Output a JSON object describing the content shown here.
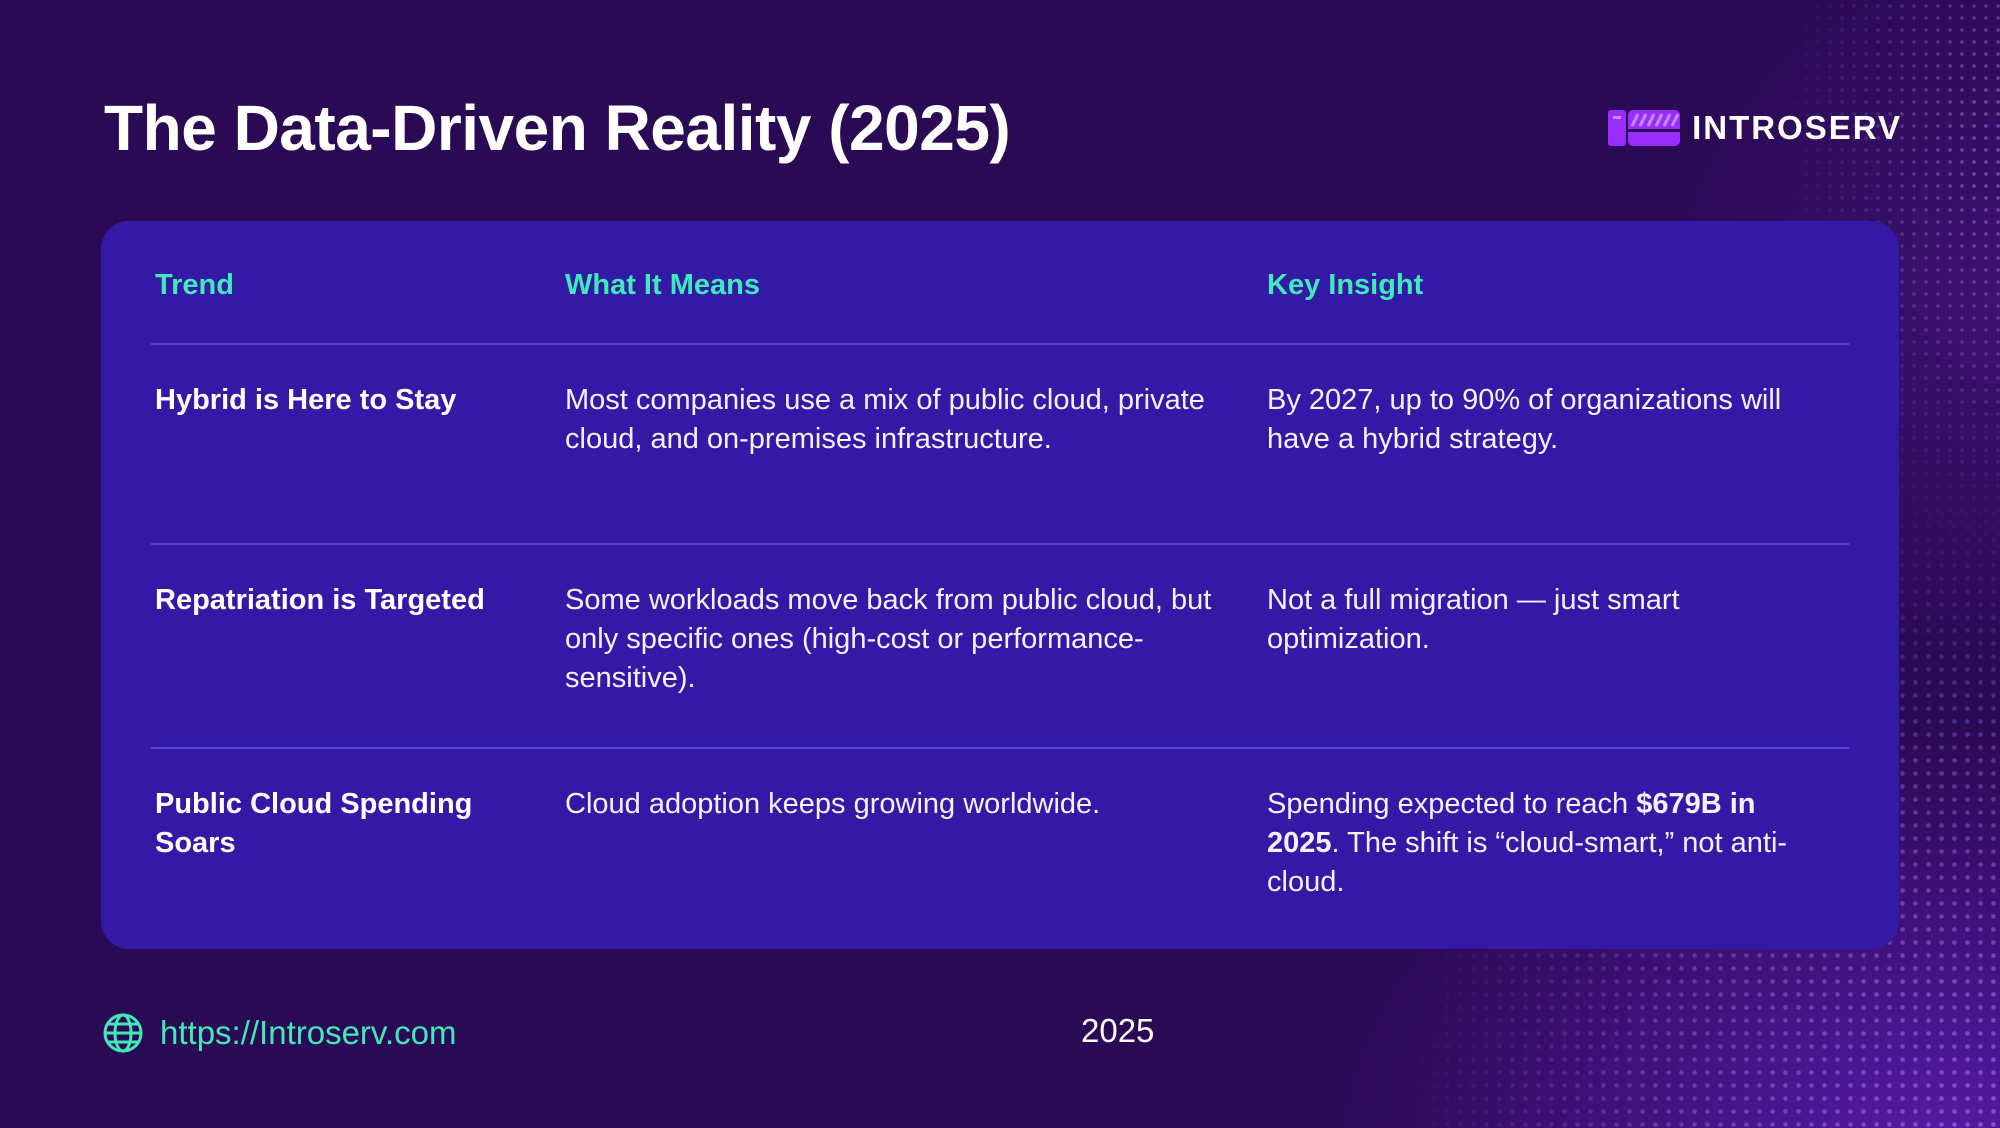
{
  "slide": {
    "title": "The Data-Driven Reality (2025)",
    "brand": "INTROSERV"
  },
  "colors": {
    "background": "#2b0a55",
    "card": "#3419a6",
    "accent": "#41e8b8",
    "logo": "#9b2cff"
  },
  "table": {
    "headers": {
      "trend": "Trend",
      "meaning": "What It Means",
      "insight": "Key Insight"
    },
    "rows": [
      {
        "trend": "Hybrid is Here to Stay",
        "meaning": "Most companies use a mix of public cloud, private cloud, and on-premises infrastructure.",
        "insight": "By 2027, up to 90% of organizations will have a hybrid strategy."
      },
      {
        "trend": "Repatriation is Targeted",
        "meaning": "Some workloads move back from public cloud, but only specific ones (high-cost or performance-sensitive).",
        "insight": "Not a full migration — just smart optimization."
      },
      {
        "trend": "Public Cloud Spending Soars",
        "meaning": "Cloud adoption keeps growing worldwide.",
        "insight_prefix": "Spending expected to reach ",
        "insight_bold": "$679B in 2025",
        "insight_suffix": ". The shift is “cloud-smart,” not anti-cloud."
      }
    ]
  },
  "footer": {
    "url": "https://Introserv.com",
    "year": "2025",
    "icon": "globe-icon"
  }
}
